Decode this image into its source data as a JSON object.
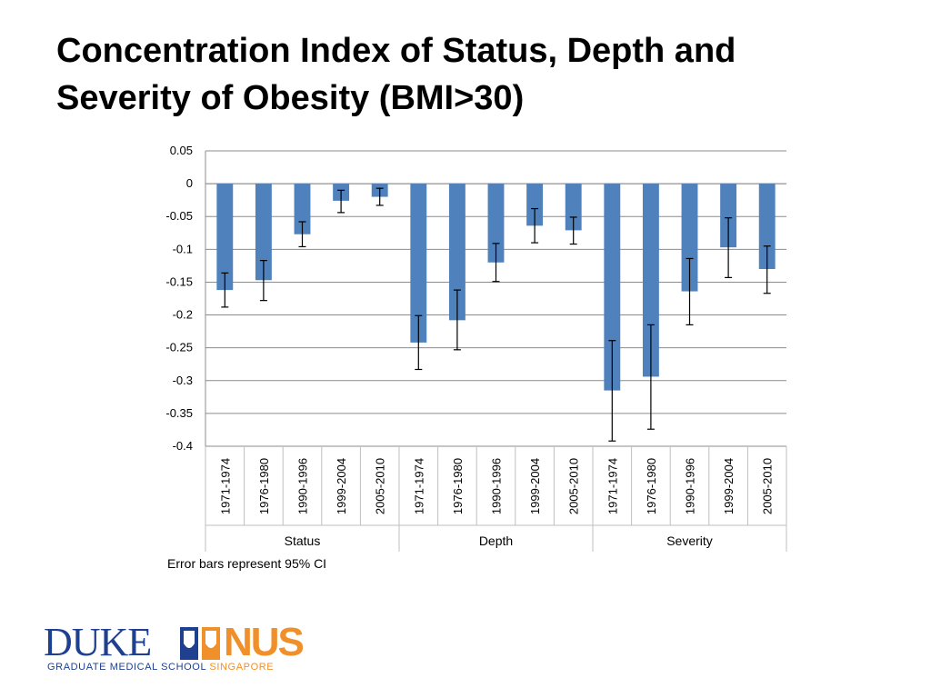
{
  "slide": {
    "title_line1": "Concentration Index of Status, Depth and",
    "title_line2": "Severity of Obesity (BMI>30)",
    "note": "Error bars represent 95% CI"
  },
  "logo": {
    "left_word": "DUKE",
    "right_word": "NUS",
    "subtitle_main": "GRADUATE MEDICAL SCHOOL",
    "subtitle_accent": "SINGAPORE",
    "colors": {
      "blue": "#1f3f8f",
      "orange": "#f0902a"
    }
  },
  "chart_data": {
    "type": "bar",
    "groups": [
      "Status",
      "Depth",
      "Severity"
    ],
    "categories": [
      "1971-1974",
      "1976-1980",
      "1990-1996",
      "1999-2004",
      "2005-2010"
    ],
    "values": [
      [
        -0.162,
        -0.147,
        -0.077,
        -0.026,
        -0.02
      ],
      [
        -0.242,
        -0.208,
        -0.12,
        -0.064,
        -0.071
      ],
      [
        -0.315,
        -0.294,
        -0.164,
        -0.097,
        -0.13
      ]
    ],
    "ci_low": [
      [
        -0.188,
        -0.178,
        -0.096,
        -0.044,
        -0.033
      ],
      [
        -0.283,
        -0.253,
        -0.149,
        -0.09,
        -0.092
      ],
      [
        -0.392,
        -0.374,
        -0.215,
        -0.143,
        -0.167
      ]
    ],
    "ci_high": [
      [
        -0.136,
        -0.117,
        -0.058,
        -0.01,
        -0.007
      ],
      [
        -0.201,
        -0.162,
        -0.091,
        -0.038,
        -0.051
      ],
      [
        -0.239,
        -0.215,
        -0.114,
        -0.052,
        -0.095
      ]
    ],
    "ylim": [
      -0.4,
      0.05
    ],
    "yticks": [
      "0.05",
      "0",
      "-0.05",
      "-0.1",
      "-0.15",
      "-0.2",
      "-0.25",
      "-0.3",
      "-0.35",
      "-0.4"
    ],
    "grid": true,
    "bar_color": "#4f81bd"
  }
}
